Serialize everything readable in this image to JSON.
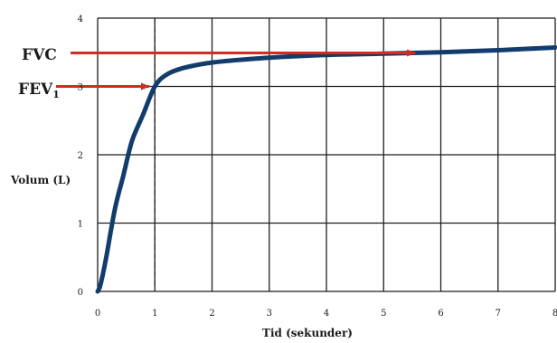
{
  "chart_data": {
    "type": "line",
    "title": "",
    "xlabel": "Tid (sekunder)",
    "ylabel": "Volum (L)",
    "xlim": [
      0,
      8
    ],
    "ylim": [
      0,
      4
    ],
    "x_ticks": [
      "0",
      "1",
      "2",
      "3",
      "4",
      "5",
      "6",
      "7",
      "8"
    ],
    "y_ticks": [
      "0",
      "1",
      "2",
      "3",
      "4"
    ],
    "grid": true,
    "series": [
      {
        "color": "#123c6b",
        "x": [
          0,
          0.05,
          0.15,
          0.3,
          0.45,
          0.6,
          0.8,
          1.0,
          1.2,
          1.5,
          2.0,
          3.0,
          4.0,
          5.0,
          6.0,
          7.0,
          8.0
        ],
        "y": [
          0,
          0.1,
          0.5,
          1.2,
          1.7,
          2.2,
          2.6,
          3.0,
          3.17,
          3.27,
          3.35,
          3.42,
          3.46,
          3.48,
          3.5,
          3.53,
          3.57
        ]
      }
    ],
    "annotations": {
      "fvc": {
        "label": "FVC",
        "y": 3.49,
        "x_end": 5.55,
        "color": "#d22b1f"
      },
      "fev1": {
        "label": "FEV",
        "subscript": "1",
        "y": 3.0,
        "x_end": 0.9,
        "color": "#d22b1f"
      },
      "dashed_x": 1.0
    }
  }
}
